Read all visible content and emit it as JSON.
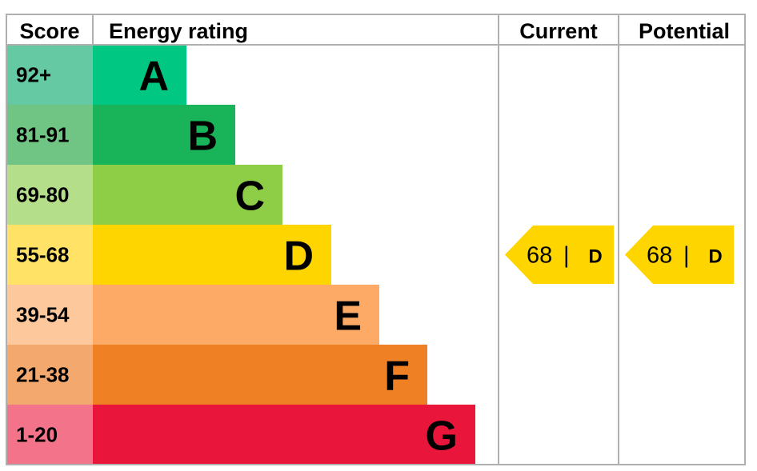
{
  "headers": {
    "score": "Score",
    "rating": "Energy rating",
    "current": "Current",
    "potential": "Potential"
  },
  "chart_data": {
    "type": "bar",
    "bands": [
      {
        "letter": "A",
        "range": "92+",
        "color": "#00c781",
        "score_color": "#65c9a3"
      },
      {
        "letter": "B",
        "range": "81-91",
        "color": "#19b459",
        "score_color": "#70c584"
      },
      {
        "letter": "C",
        "range": "69-80",
        "color": "#8dce46",
        "score_color": "#b5de8a"
      },
      {
        "letter": "D",
        "range": "55-68",
        "color": "#ffd500",
        "score_color": "#ffe266"
      },
      {
        "letter": "E",
        "range": "39-54",
        "color": "#fcaa65",
        "score_color": "#fdc89b"
      },
      {
        "letter": "F",
        "range": "21-38",
        "color": "#ef8023",
        "score_color": "#f3a86e"
      },
      {
        "letter": "G",
        "range": "1-20",
        "color": "#e9153b",
        "score_color": "#f2738a"
      }
    ],
    "current": {
      "value": "68",
      "letter": "D",
      "separator": "|",
      "color": "#ffd500"
    },
    "potential": {
      "value": "68",
      "letter": "D",
      "separator": "|",
      "color": "#ffd500"
    }
  }
}
